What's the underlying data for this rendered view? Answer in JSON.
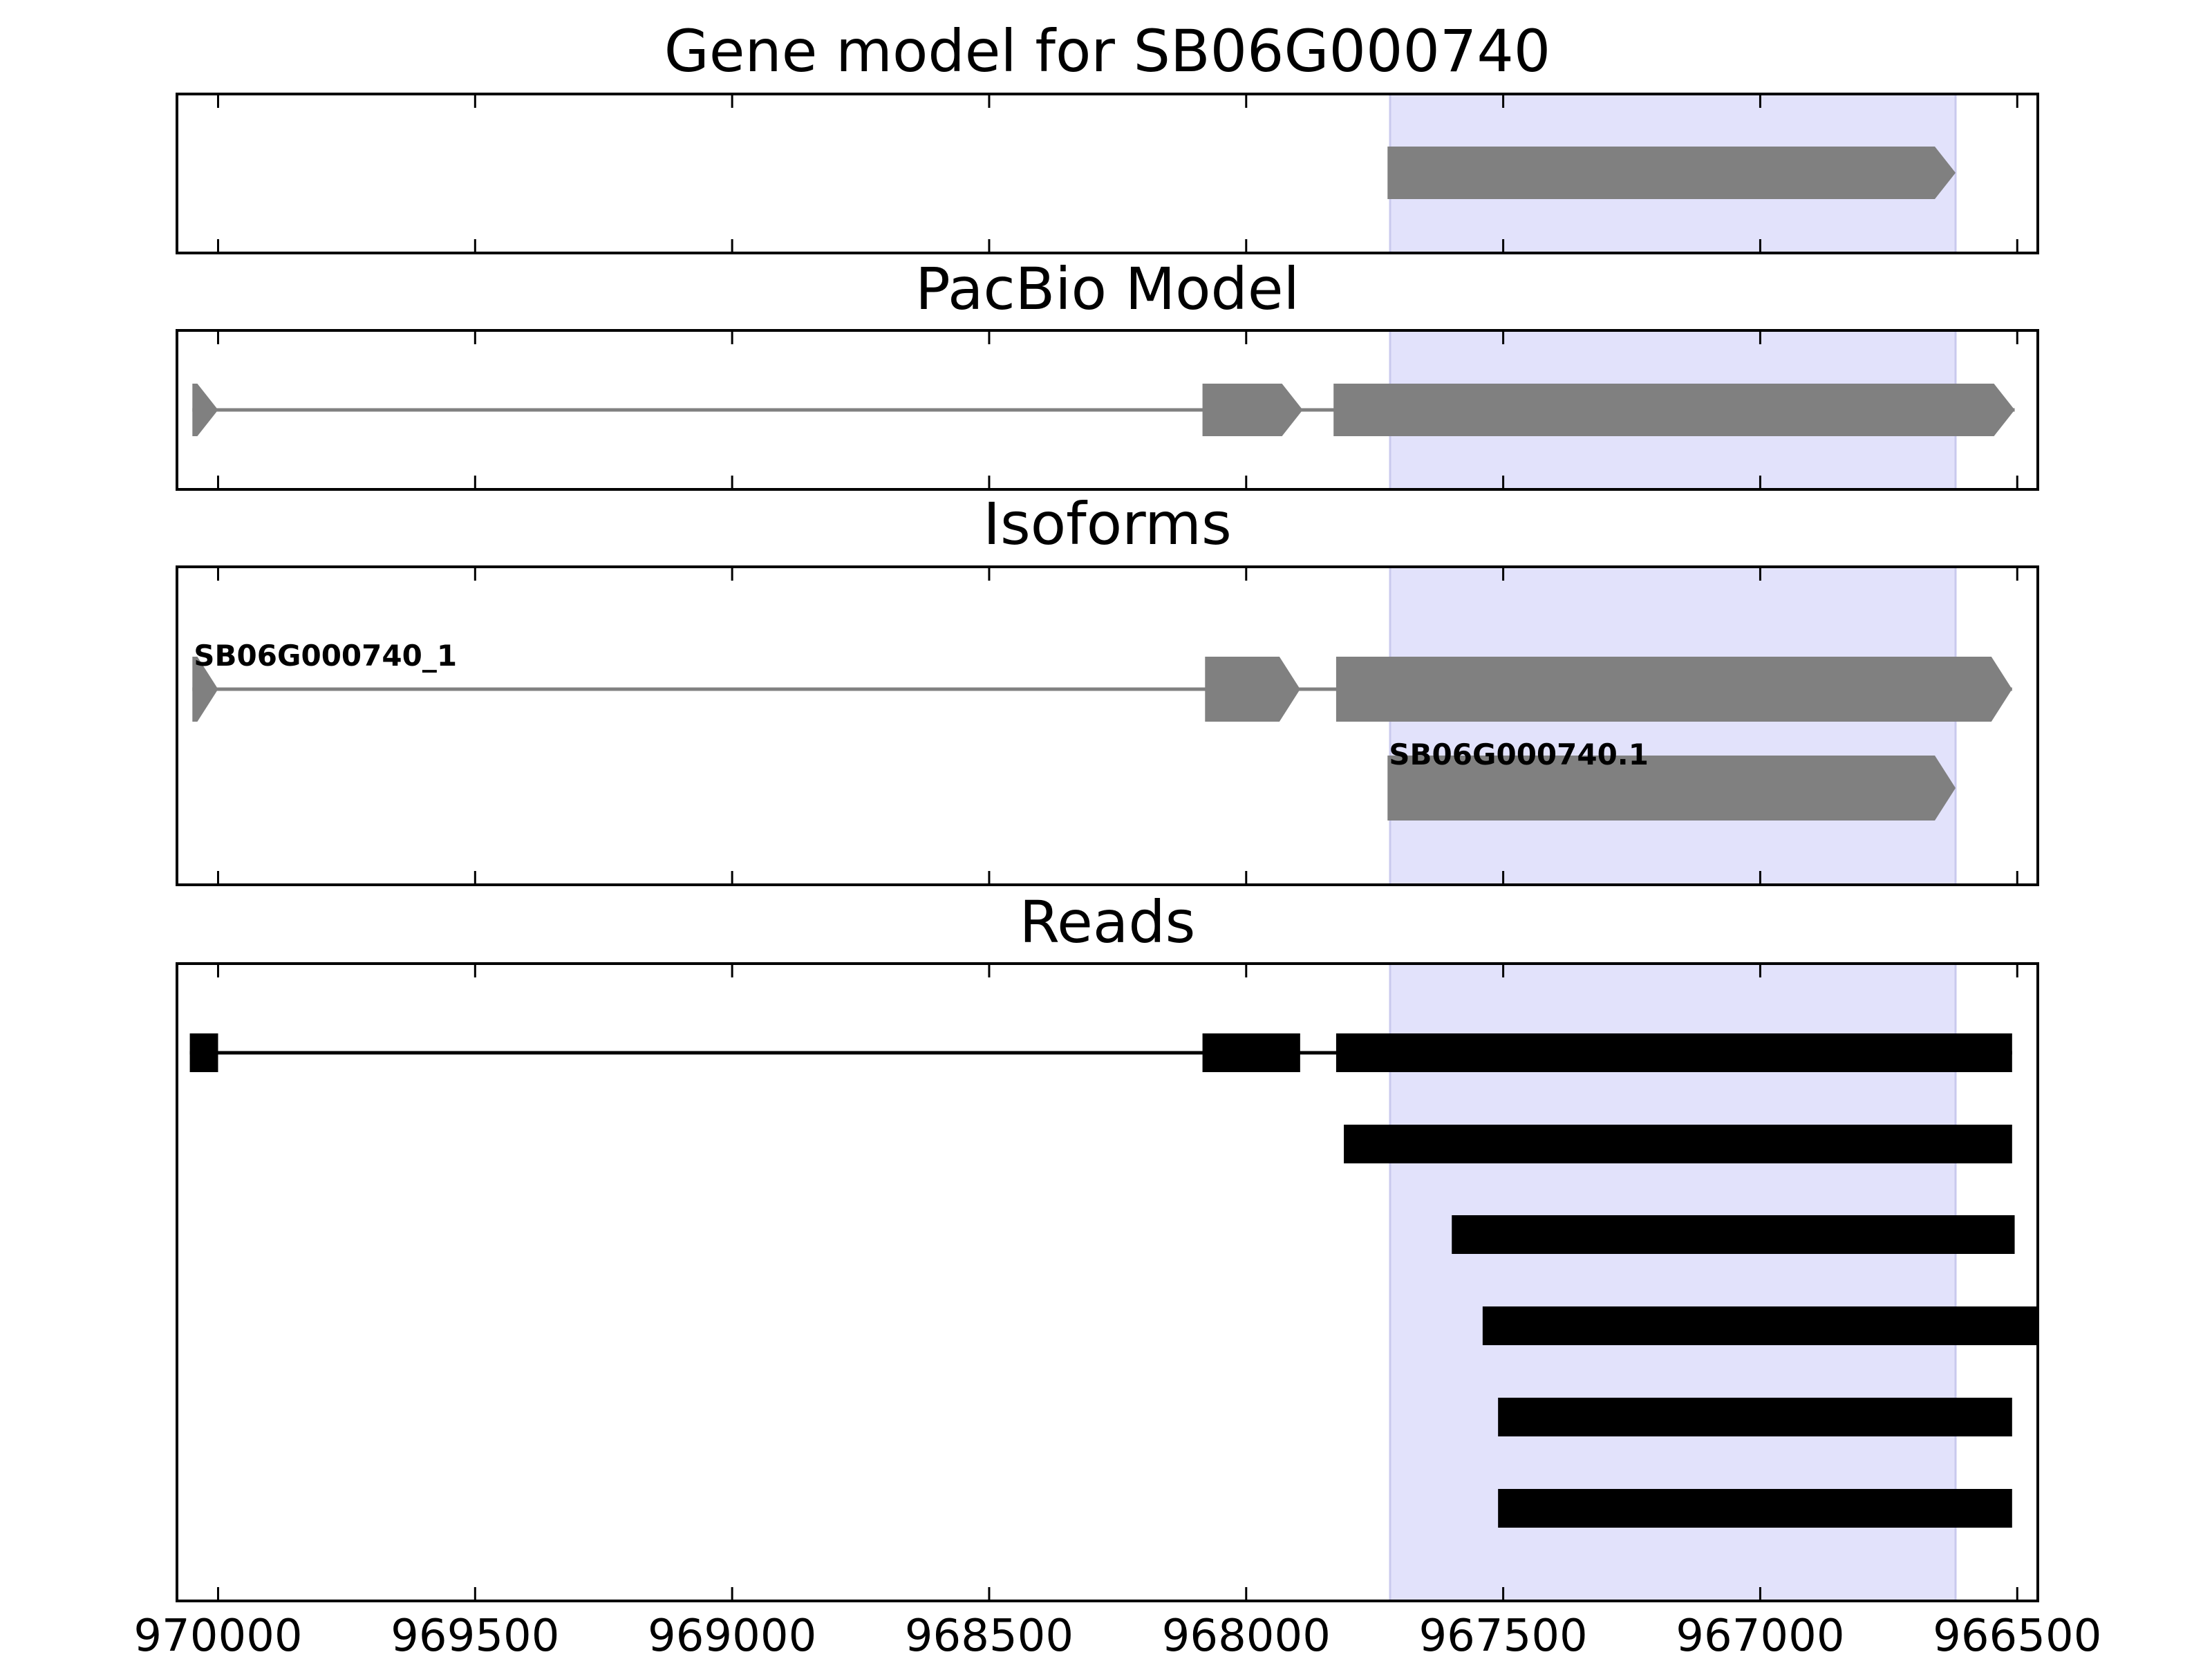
{
  "chart_data": {
    "type": "gene-track",
    "x_axis": {
      "direction": "reversed",
      "xlim": [
        970080,
        966460
      ],
      "ticks": [
        970000,
        969500,
        969000,
        968500,
        968000,
        967500,
        967000,
        966500
      ],
      "tick_labels": [
        "970000",
        "969500",
        "969000",
        "968500",
        "968000",
        "967500",
        "967000",
        "966500"
      ]
    },
    "highlight_region": {
      "start": 967720,
      "end": 966620,
      "color": "#e2e2fb"
    },
    "colors": {
      "gene": "#808080",
      "read": "#000000",
      "frame": "#000000"
    },
    "panels": [
      {
        "name": "gene-model",
        "title": "Gene model for SB06G000740",
        "models": [
          {
            "label": "",
            "exons": [
              [
                967725,
                966620
              ]
            ],
            "direction": "forward"
          }
        ]
      },
      {
        "name": "pacbio-model",
        "title": "PacBio Model",
        "models": [
          {
            "label": "",
            "exons": [
              [
                970050,
                970000
              ],
              [
                968085,
                967890
              ],
              [
                967830,
                966505
              ]
            ],
            "direction": "forward"
          }
        ]
      },
      {
        "name": "isoforms",
        "title": "Isoforms",
        "models": [
          {
            "label": "SB06G000740_1",
            "exons": [
              [
                970050,
                970000
              ],
              [
                968080,
                967895
              ],
              [
                967825,
                966510
              ]
            ],
            "direction": "forward"
          },
          {
            "label": "SB06G000740.1",
            "exons": [
              [
                967725,
                966620
              ]
            ],
            "direction": "forward"
          }
        ]
      },
      {
        "name": "reads",
        "title": "Reads",
        "reads": [
          {
            "exons": [
              [
                970055,
                970000
              ],
              [
                968085,
                967895
              ],
              [
                967825,
                966510
              ]
            ]
          },
          {
            "exons": [
              [
                967810,
                966510
              ]
            ]
          },
          {
            "exons": [
              [
                967600,
                966505
              ]
            ]
          },
          {
            "exons": [
              [
                967540,
                966460
              ]
            ]
          },
          {
            "exons": [
              [
                967510,
                966510
              ]
            ]
          },
          {
            "exons": [
              [
                967510,
                966510
              ]
            ]
          }
        ]
      }
    ]
  }
}
